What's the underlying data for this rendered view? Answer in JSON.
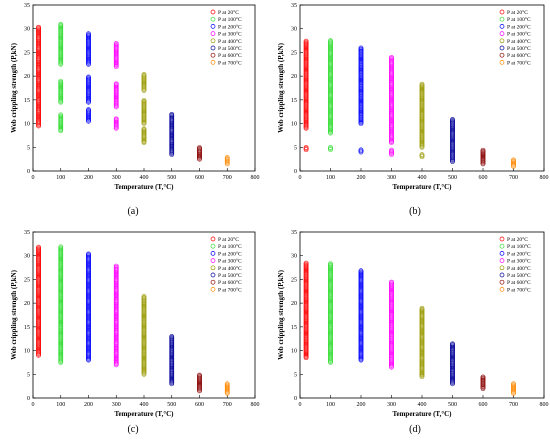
{
  "chart_data": [
    {
      "type": "scatter",
      "caption": "(a)",
      "xlabel": "Temperature (T,°C)",
      "ylabel": "Web crippling strength (P,kN)",
      "xlim": [
        0,
        800
      ],
      "ylim": [
        0,
        35
      ],
      "xticks": [
        "0",
        "100",
        "200",
        "300",
        "400",
        "500",
        "600",
        "700",
        "800"
      ],
      "yticks": [
        "0",
        "5",
        "10",
        "15",
        "20",
        "25",
        "30",
        "35"
      ],
      "legend": {
        "position": "top-right"
      },
      "series": [
        {
          "name": "P at 20°C",
          "color": "#ff0000",
          "x": 20,
          "ranges": [
            [
              9.5,
              30.5
            ]
          ]
        },
        {
          "name": "P at 100°C",
          "color": "#33dd33",
          "x": 100,
          "ranges": [
            [
              8.5,
              12
            ],
            [
              14.5,
              19
            ],
            [
              22.5,
              31
            ]
          ]
        },
        {
          "name": "P at 200°C",
          "color": "#0000ff",
          "x": 200,
          "ranges": [
            [
              10.5,
              13
            ],
            [
              14.5,
              20
            ],
            [
              22.5,
              29
            ]
          ]
        },
        {
          "name": "P at 300°C",
          "color": "#ff00ff",
          "x": 300,
          "ranges": [
            [
              9,
              11
            ],
            [
              13.5,
              18.5
            ],
            [
              22,
              27
            ]
          ]
        },
        {
          "name": "P at 400°C",
          "color": "#999900",
          "x": 400,
          "ranges": [
            [
              6,
              9
            ],
            [
              10,
              15
            ],
            [
              17,
              20.5
            ]
          ]
        },
        {
          "name": "P at 500°C",
          "color": "#000099",
          "x": 500,
          "ranges": [
            [
              3.5,
              12
            ]
          ]
        },
        {
          "name": "P at 600°C",
          "color": "#880000",
          "x": 600,
          "ranges": [
            [
              2.5,
              5
            ]
          ]
        },
        {
          "name": "P at 700°C",
          "color": "#ff8800",
          "x": 700,
          "ranges": [
            [
              1.5,
              3
            ]
          ]
        }
      ]
    },
    {
      "type": "scatter",
      "caption": "(b)",
      "xlabel": "Temperature (T,°C)",
      "ylabel": "Web crippling strength (P,kN)",
      "xlim": [
        0,
        800
      ],
      "ylim": [
        0,
        35
      ],
      "xticks": [
        "0",
        "100",
        "200",
        "300",
        "400",
        "500",
        "600",
        "700",
        "800"
      ],
      "yticks": [
        "0",
        "5",
        "10",
        "15",
        "20",
        "25",
        "30",
        "35"
      ],
      "legend": {
        "position": "top-right"
      },
      "series": [
        {
          "name": "P at 20°C",
          "color": "#ff0000",
          "x": 20,
          "ranges": [
            [
              4.5,
              5
            ],
            [
              9,
              27.5
            ]
          ]
        },
        {
          "name": "P at 100°C",
          "color": "#33dd33",
          "x": 100,
          "ranges": [
            [
              4.5,
              5
            ],
            [
              8,
              27.5
            ]
          ]
        },
        {
          "name": "P at 200°C",
          "color": "#0000ff",
          "x": 200,
          "ranges": [
            [
              4,
              4.5
            ],
            [
              10,
              26
            ]
          ]
        },
        {
          "name": "P at 300°C",
          "color": "#ff00ff",
          "x": 300,
          "ranges": [
            [
              3.5,
              4.5
            ],
            [
              6,
              24
            ]
          ]
        },
        {
          "name": "P at 400°C",
          "color": "#999900",
          "x": 400,
          "ranges": [
            [
              3,
              3.5
            ],
            [
              5,
              18.5
            ]
          ]
        },
        {
          "name": "P at 500°C",
          "color": "#000099",
          "x": 500,
          "ranges": [
            [
              2,
              11
            ]
          ]
        },
        {
          "name": "P at 600°C",
          "color": "#880000",
          "x": 600,
          "ranges": [
            [
              1.5,
              4.5
            ]
          ]
        },
        {
          "name": "P at 700°C",
          "color": "#ff8800",
          "x": 700,
          "ranges": [
            [
              1,
              2.5
            ]
          ]
        }
      ]
    },
    {
      "type": "scatter",
      "caption": "(c)",
      "xlabel": "Temperature (T,°C)",
      "ylabel": "Web crippling strength (P,kN)",
      "xlim": [
        0,
        800
      ],
      "ylim": [
        0,
        35
      ],
      "xticks": [
        "0",
        "100",
        "200",
        "300",
        "400",
        "500",
        "600",
        "700",
        "800"
      ],
      "yticks": [
        "0",
        "5",
        "10",
        "15",
        "20",
        "25",
        "30",
        "35"
      ],
      "legend": {
        "position": "top-right"
      },
      "series": [
        {
          "name": "P at 20°C",
          "color": "#ff0000",
          "x": 20,
          "ranges": [
            [
              9,
              32
            ]
          ]
        },
        {
          "name": "P at 100°C",
          "color": "#33dd33",
          "x": 100,
          "ranges": [
            [
              7.5,
              32
            ]
          ]
        },
        {
          "name": "P at 200°C",
          "color": "#0000ff",
          "x": 200,
          "ranges": [
            [
              8,
              30.5
            ]
          ]
        },
        {
          "name": "P at 300°C",
          "color": "#ff00ff",
          "x": 300,
          "ranges": [
            [
              7,
              28
            ]
          ]
        },
        {
          "name": "P at 400°C",
          "color": "#999900",
          "x": 400,
          "ranges": [
            [
              5,
              21.5
            ]
          ]
        },
        {
          "name": "P at 500°C",
          "color": "#000099",
          "x": 500,
          "ranges": [
            [
              3,
              13
            ]
          ]
        },
        {
          "name": "P at 600°C",
          "color": "#880000",
          "x": 600,
          "ranges": [
            [
              1.5,
              5
            ]
          ]
        },
        {
          "name": "P at 700°C",
          "color": "#ff8800",
          "x": 700,
          "ranges": [
            [
              1,
              3
            ]
          ]
        }
      ]
    },
    {
      "type": "scatter",
      "caption": "(d)",
      "xlabel": "Temperature (T,°C)",
      "ylabel": "Web crippling strength (P,kN)",
      "xlim": [
        0,
        800
      ],
      "ylim": [
        0,
        35
      ],
      "xticks": [
        "0",
        "100",
        "200",
        "300",
        "400",
        "500",
        "600",
        "700",
        "800"
      ],
      "yticks": [
        "0",
        "5",
        "10",
        "15",
        "20",
        "25",
        "30",
        "35"
      ],
      "legend": {
        "position": "top-right"
      },
      "series": [
        {
          "name": "P at 20°C",
          "color": "#ff0000",
          "x": 20,
          "ranges": [
            [
              8.5,
              28.5
            ]
          ]
        },
        {
          "name": "P at 100°C",
          "color": "#33dd33",
          "x": 100,
          "ranges": [
            [
              7.5,
              28.5
            ]
          ]
        },
        {
          "name": "P at 200°C",
          "color": "#0000ff",
          "x": 200,
          "ranges": [
            [
              8,
              27
            ]
          ]
        },
        {
          "name": "P at 300°C",
          "color": "#ff00ff",
          "x": 300,
          "ranges": [
            [
              6.5,
              24.5
            ]
          ]
        },
        {
          "name": "P at 400°C",
          "color": "#999900",
          "x": 400,
          "ranges": [
            [
              4.5,
              19
            ]
          ]
        },
        {
          "name": "P at 500°C",
          "color": "#000099",
          "x": 500,
          "ranges": [
            [
              3,
              11.5
            ]
          ]
        },
        {
          "name": "P at 600°C",
          "color": "#880000",
          "x": 600,
          "ranges": [
            [
              2,
              4.5
            ]
          ]
        },
        {
          "name": "P at 700°C",
          "color": "#ff8800",
          "x": 700,
          "ranges": [
            [
              1,
              3
            ]
          ]
        }
      ]
    }
  ]
}
